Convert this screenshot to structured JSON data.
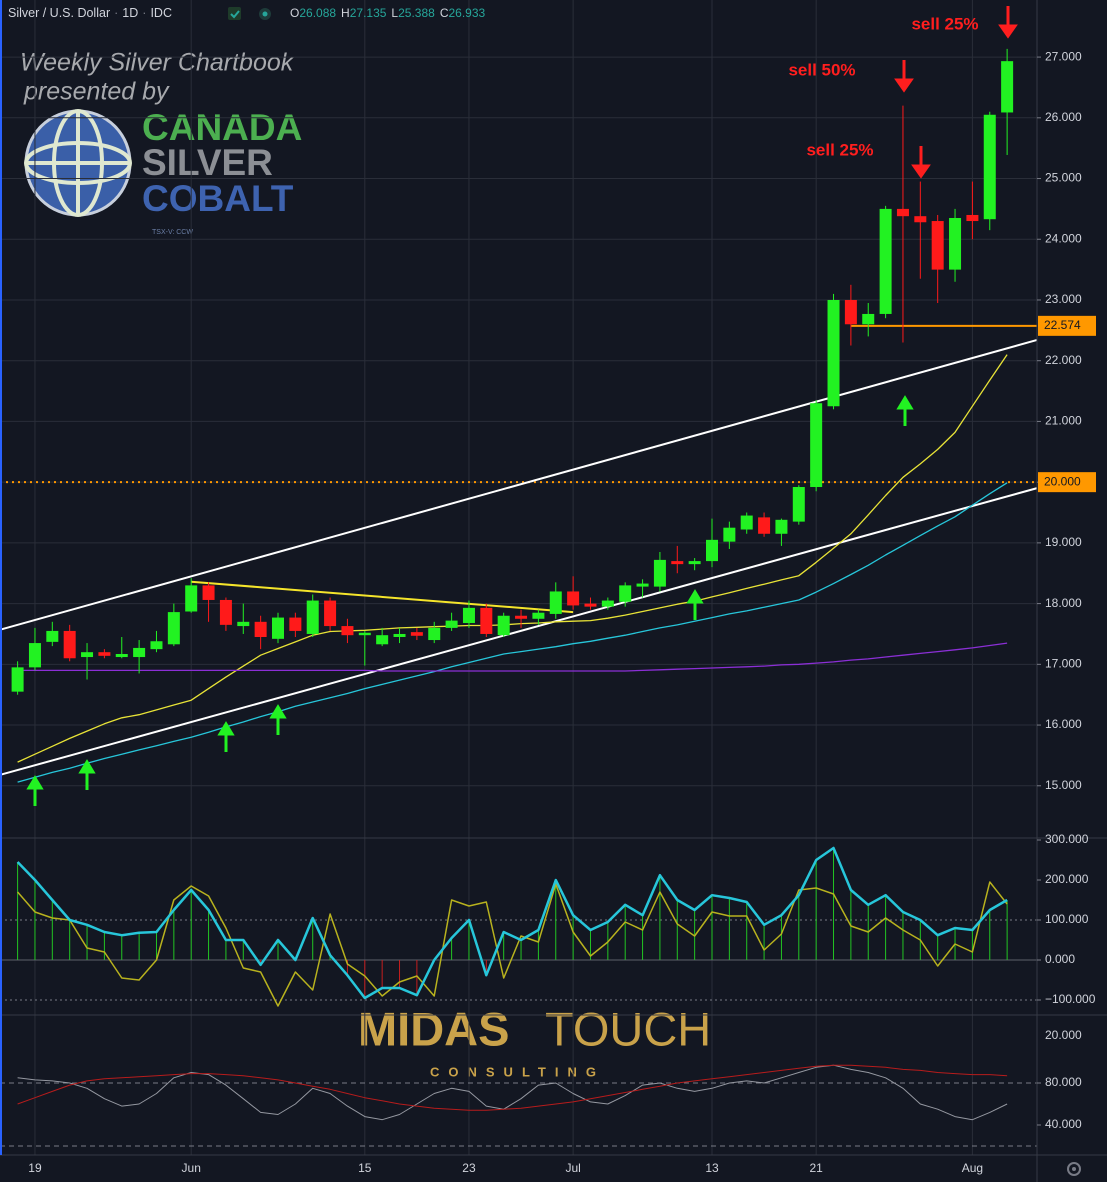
{
  "header": {
    "symbol": "Silver / U.S. Dollar",
    "interval": "1D",
    "source": "IDC",
    "ohlc": [
      {
        "key": "O",
        "value": 26.088
      },
      {
        "key": "H",
        "value": 27.135
      },
      {
        "key": "L",
        "value": 25.388
      },
      {
        "key": "C",
        "value": 26.933
      }
    ]
  },
  "watermarks": {
    "chartbook": "Weekly Silver Chartbook",
    "presented": "presented by",
    "canada": "CANADA",
    "silver": "SILVER",
    "cobalt": "COBALT",
    "ticker": "TSX-V: CCW",
    "midas": "MIDAS",
    "touch": "TOUCH",
    "consulting": "CONSULTING"
  },
  "annotations": [
    "sell 25%",
    "sell 50%",
    "sell 25%"
  ],
  "chart_data": [
    {
      "type": "candlestick",
      "up_color": "#22f222",
      "down_color": "#ff1a1a",
      "grid": true,
      "categories": [
        null,
        "19",
        null,
        null,
        null,
        null,
        null,
        null,
        null,
        null,
        "Jun",
        null,
        null,
        null,
        null,
        null,
        null,
        null,
        null,
        null,
        "15",
        null,
        null,
        null,
        null,
        null,
        "23",
        null,
        null,
        null,
        null,
        null,
        "Jul",
        null,
        null,
        null,
        null,
        null,
        null,
        null,
        "13",
        null,
        null,
        null,
        null,
        null,
        "21",
        null,
        null,
        null,
        null,
        null,
        null,
        null,
        null,
        "Aug",
        null,
        null
      ],
      "open": [
        16.55,
        16.95,
        17.37,
        17.55,
        17.12,
        17.2,
        17.12,
        17.12,
        17.25,
        17.33,
        17.87,
        18.3,
        18.06,
        17.63,
        17.7,
        17.42,
        17.77,
        17.5,
        18.05,
        17.63,
        17.48,
        17.33,
        17.45,
        17.53,
        17.4,
        17.6,
        17.68,
        17.93,
        17.48,
        17.8,
        17.75,
        17.83,
        18.2,
        18.0,
        17.95,
        18.03,
        18.28,
        18.28,
        18.7,
        18.65,
        18.7,
        19.02,
        19.22,
        19.42,
        19.15,
        19.35,
        19.92,
        21.25,
        23.0,
        22.6,
        22.77,
        24.5,
        24.38,
        24.3,
        23.5,
        24.4,
        24.33,
        26.088
      ],
      "high": [
        17.05,
        17.6,
        17.7,
        17.65,
        17.35,
        17.25,
        17.45,
        17.4,
        17.55,
        18.0,
        18.42,
        18.35,
        18.1,
        18.0,
        17.8,
        17.85,
        17.85,
        18.15,
        18.1,
        17.75,
        17.55,
        17.6,
        17.6,
        17.6,
        17.7,
        17.85,
        18.05,
        18.0,
        17.85,
        17.9,
        17.9,
        18.35,
        18.45,
        18.1,
        18.1,
        18.35,
        18.4,
        18.85,
        18.95,
        18.75,
        19.4,
        19.35,
        19.5,
        19.5,
        19.4,
        19.95,
        21.35,
        23.1,
        23.25,
        22.95,
        24.55,
        26.2,
        24.95,
        24.4,
        24.5,
        24.95,
        26.1,
        27.135
      ],
      "low": [
        16.5,
        16.9,
        17.3,
        17.05,
        16.75,
        17.1,
        17.1,
        16.85,
        17.2,
        17.3,
        17.85,
        17.7,
        17.55,
        17.5,
        17.25,
        17.35,
        17.45,
        17.45,
        17.55,
        17.35,
        16.98,
        17.3,
        17.35,
        17.4,
        17.35,
        17.55,
        17.6,
        17.45,
        17.45,
        17.6,
        17.65,
        17.75,
        17.9,
        17.9,
        17.9,
        17.95,
        18.1,
        18.2,
        18.5,
        18.55,
        18.6,
        18.9,
        19.15,
        19.1,
        18.95,
        19.3,
        19.85,
        21.2,
        22.25,
        22.4,
        22.7,
        22.3,
        23.35,
        22.95,
        23.3,
        24.0,
        24.15,
        25.388
      ],
      "close": [
        16.95,
        17.35,
        17.55,
        17.1,
        17.2,
        17.14,
        17.17,
        17.27,
        17.38,
        17.86,
        18.3,
        18.06,
        17.65,
        17.7,
        17.45,
        17.77,
        17.55,
        18.05,
        17.63,
        17.48,
        17.52,
        17.48,
        17.5,
        17.47,
        17.6,
        17.72,
        17.93,
        17.5,
        17.8,
        17.75,
        17.85,
        18.2,
        17.97,
        17.95,
        18.05,
        18.3,
        18.33,
        18.72,
        18.65,
        18.7,
        19.05,
        19.25,
        19.45,
        19.15,
        19.38,
        19.92,
        21.3,
        23.0,
        22.6,
        22.77,
        24.5,
        24.38,
        24.28,
        23.5,
        24.35,
        24.3,
        26.05,
        26.933
      ],
      "series": [
        {
          "color": "#e8e337",
          "values": [
            15.39,
            15.52,
            15.65,
            15.78,
            15.9,
            16.02,
            16.12,
            16.17,
            16.25,
            16.33,
            16.41,
            16.6,
            16.79,
            16.97,
            17.15,
            17.26,
            17.37,
            17.48,
            17.54,
            17.55,
            17.56,
            17.58,
            17.6,
            17.61,
            17.62,
            17.63,
            17.64,
            17.64,
            17.65,
            17.67,
            17.68,
            17.7,
            17.71,
            17.72,
            17.76,
            17.81,
            17.87,
            17.93,
            17.99,
            18.04,
            18.11,
            18.18,
            18.25,
            18.32,
            18.39,
            18.46,
            18.68,
            18.91,
            19.15,
            19.46,
            19.78,
            20.08,
            20.3,
            20.54,
            20.82,
            21.25,
            21.68,
            22.1
          ]
        },
        {
          "color": "#27c6da",
          "values": [
            15.06,
            15.14,
            15.22,
            15.29,
            15.37,
            15.45,
            15.52,
            15.59,
            15.66,
            15.73,
            15.8,
            15.88,
            15.97,
            16.05,
            16.14,
            16.22,
            16.31,
            16.38,
            16.45,
            16.52,
            16.6,
            16.67,
            16.74,
            16.81,
            16.88,
            16.96,
            17.03,
            17.1,
            17.17,
            17.21,
            17.25,
            17.29,
            17.34,
            17.38,
            17.43,
            17.48,
            17.54,
            17.6,
            17.65,
            17.71,
            17.77,
            17.83,
            17.88,
            17.94,
            18.0,
            18.06,
            18.19,
            18.33,
            18.48,
            18.63,
            18.8,
            18.96,
            19.12,
            19.28,
            19.43,
            19.62,
            19.81,
            19.99
          ]
        },
        {
          "color": "#8b2fd6",
          "values": [
            16.9,
            16.9,
            16.9,
            16.9,
            16.9,
            16.9,
            16.9,
            16.9,
            16.9,
            16.9,
            16.9,
            16.9,
            16.9,
            16.9,
            16.9,
            16.9,
            16.9,
            16.9,
            16.9,
            16.9,
            16.9,
            16.89,
            16.89,
            16.89,
            16.89,
            16.89,
            16.89,
            16.89,
            16.89,
            16.89,
            16.89,
            16.89,
            16.89,
            16.89,
            16.89,
            16.89,
            16.9,
            16.91,
            16.92,
            16.93,
            16.94,
            16.95,
            16.96,
            16.97,
            16.99,
            17.0,
            17.02,
            17.04,
            17.07,
            17.09,
            17.12,
            17.15,
            17.18,
            17.21,
            17.24,
            17.27,
            17.31,
            17.35
          ]
        }
      ],
      "trendlines": [
        {
          "color": "#ffffff",
          "x": [
            -1,
            58.7
          ],
          "y": [
            17.57,
            22.34
          ]
        },
        {
          "color": "#ffffff",
          "x": [
            -1,
            58.7
          ],
          "y": [
            15.18,
            19.9
          ]
        },
        {
          "color": "#f5e52b",
          "x": [
            10,
            32
          ],
          "y": [
            18.36,
            17.86
          ]
        }
      ],
      "levels": [
        {
          "value": 22.574,
          "color": "#ff9800",
          "style": "solid",
          "x_start": 48
        },
        {
          "value": {
            "value": 20,
            "label": "20.000"
          },
          "color": "#ff9800",
          "style": "dotted"
        }
      ],
      "ylim": [
        14.14,
        27.94
      ],
      "yticks": [
        {
          "value": 27,
          "label": "27.000"
        },
        {
          "value": 26,
          "label": "26.000"
        },
        {
          "value": 25,
          "label": "25.000"
        },
        {
          "value": 24,
          "label": "24.000"
        },
        {
          "value": 23,
          "label": "23.000"
        },
        {
          "value": 22,
          "label": "22.000"
        },
        {
          "value": 21,
          "label": "21.000"
        },
        {
          "value": 20,
          "label": "20.000"
        },
        {
          "value": 19,
          "label": "19.000"
        },
        {
          "value": 18,
          "label": "18.000"
        },
        {
          "value": 17,
          "label": "17.000"
        },
        {
          "value": 16,
          "label": "16.000"
        },
        {
          "value": 15,
          "label": "15.000"
        }
      ]
    },
    {
      "type": "histogram-line",
      "up_color": "#22c422",
      "down_color": "#c41e1e",
      "series": [
        {
          "color": "#27c6da",
          "values": [
            245,
            200,
            150,
            100,
            88,
            70,
            62,
            68,
            70,
            125,
            175,
            125,
            50,
            50,
            -12,
            50,
            0,
            105,
            12,
            -38,
            -95,
            -70,
            -70,
            -88,
            0,
            55,
            100,
            -38,
            70,
            50,
            75,
            200,
            112,
            75,
            95,
            138,
            112,
            212,
            150,
            125,
            162,
            155,
            145,
            88,
            112,
            162,
            250,
            280,
            175,
            138,
            162,
            120,
            100,
            62,
            80,
            75,
            125,
            150
          ]
        },
        {
          "color": "#b8b21e",
          "values": [
            170,
            120,
            105,
            100,
            30,
            20,
            -45,
            -50,
            0,
            150,
            185,
            160,
            80,
            -20,
            -30,
            -115,
            -30,
            -75,
            115,
            -10,
            -40,
            -90,
            -55,
            -40,
            -90,
            150,
            135,
            145,
            -45,
            60,
            45,
            190,
            70,
            10,
            45,
            95,
            75,
            170,
            90,
            60,
            120,
            110,
            110,
            25,
            65,
            175,
            180,
            165,
            85,
            70,
            105,
            75,
            50,
            -15,
            40,
            20,
            195,
            140
          ]
        }
      ],
      "hlines": [
        100,
        -100
      ],
      "ylim": [
        -137.5,
        305
      ],
      "yticks": [
        {
          "value": 300,
          "label": "300.000"
        },
        {
          "value": 200,
          "label": "200.000"
        },
        {
          "value": 100,
          "label": "100.000"
        },
        {
          "value": 0,
          "label": "0.000"
        },
        {
          "value": -100,
          "label": "−100.000"
        }
      ]
    },
    {
      "type": "line",
      "scale_label": "20.000",
      "series": [
        {
          "color": "#9598a1",
          "values": [
            85,
            83,
            82,
            80,
            75,
            65,
            58,
            60,
            70,
            85,
            90,
            88,
            78,
            65,
            52,
            50,
            60,
            75,
            70,
            58,
            48,
            45,
            50,
            60,
            70,
            75,
            72,
            58,
            55,
            65,
            78,
            80,
            70,
            62,
            60,
            68,
            78,
            80,
            75,
            72,
            75,
            80,
            82,
            80,
            85,
            90,
            95,
            97,
            93,
            90,
            85,
            75,
            60,
            55,
            48,
            45,
            52,
            60
          ]
        },
        {
          "color": "#b71c1c",
          "values": [
            60,
            66,
            72,
            78,
            82,
            84,
            85,
            86,
            87,
            88,
            89,
            89,
            88,
            87,
            85,
            83,
            80,
            77,
            74,
            70,
            66,
            63,
            60,
            58,
            56,
            55,
            54,
            54,
            55,
            56,
            58,
            60,
            62,
            65,
            68,
            71,
            74,
            77,
            80,
            82,
            84,
            86,
            88,
            90,
            92,
            94,
            96,
            97,
            97,
            96,
            95,
            93,
            92,
            90,
            89,
            88,
            88,
            87
          ]
        }
      ],
      "hlines": [
        80,
        20
      ],
      "ylim": [
        11.4,
        144.8
      ],
      "yticks": [
        {
          "value": 80,
          "label": "80.000"
        },
        {
          "value": 40,
          "label": "40.000"
        }
      ]
    }
  ]
}
